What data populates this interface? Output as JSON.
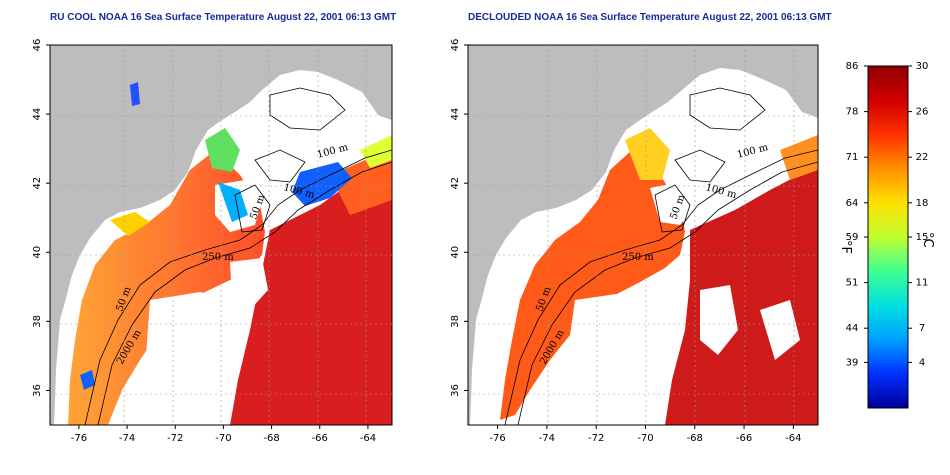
{
  "panels": [
    {
      "title": "RU COOL NOAA 16 Sea Surface Temperature August 22, 2001 06:13 GMT",
      "contour_labels": [
        "100 m",
        "100 m",
        "50 m",
        "250 m",
        "50 m",
        "2000 m"
      ]
    },
    {
      "title": "DECLOUDED NOAA 16 Sea Surface Temperature August 22, 2001 06:13 GMT",
      "contour_labels": [
        "100 m",
        "100 m",
        "50 m",
        "250 m",
        "50 m",
        "2000 m"
      ]
    }
  ],
  "axes": {
    "x_ticks": [
      "-76",
      "-74",
      "-72",
      "-70",
      "-68",
      "-66",
      "-64"
    ],
    "y_ticks": [
      "46",
      "44",
      "42",
      "40",
      "38",
      "36"
    ],
    "lon_range": [
      -77.2,
      -63.0
    ],
    "lat_range": [
      35.0,
      46.0
    ]
  },
  "colorbar": {
    "fahrenheit_label": "°F",
    "celsius_label": "°C",
    "fahrenheit_ticks": [
      "86",
      "78",
      "71",
      "64",
      "59",
      "51",
      "44",
      "39"
    ],
    "celsius_ticks": [
      "30",
      "26",
      "22",
      "18",
      "15",
      "11",
      "7",
      "4"
    ],
    "colors": [
      "#0000a0",
      "#0030ff",
      "#00a0ff",
      "#00e0e0",
      "#40ff90",
      "#c0ff30",
      "#ffe000",
      "#ff9000",
      "#ff3000",
      "#d00000",
      "#900000"
    ]
  },
  "colors": {
    "land": "#bdbdbd",
    "ocean_warm": "#d81e1e",
    "title": "#1a2a9a"
  }
}
